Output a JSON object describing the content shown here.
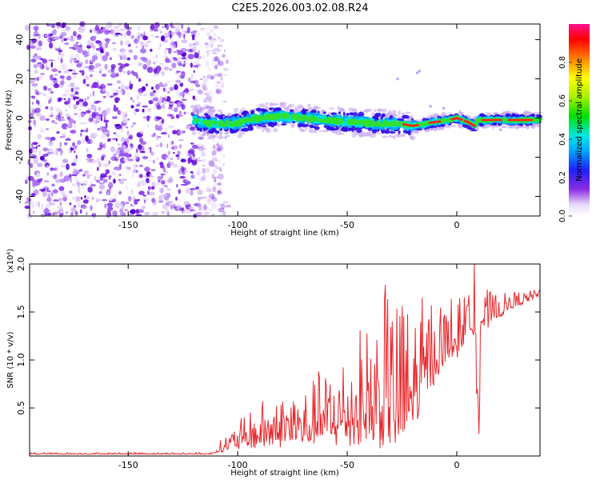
{
  "title": "C2E5.2026.003.02.08.R24",
  "chart_data": [
    {
      "type": "heatmap",
      "xlabel": "Height of straight line (km)",
      "ylabel": "Frequency (Hz)",
      "xlim": [
        -195,
        38
      ],
      "ylim": [
        -50,
        48
      ],
      "x_ticks": [
        -150,
        -100,
        -50,
        0
      ],
      "x_tick_labels": [
        "-150",
        "-100",
        "-50",
        "0"
      ],
      "y_ticks": [
        -40,
        -20,
        0,
        20,
        40
      ],
      "y_tick_labels": [
        "-40",
        "-20",
        "0",
        "20",
        "40"
      ],
      "colorbar": {
        "label": "Normalized spectral amplitude",
        "range": [
          0,
          1
        ],
        "ticks": [
          0.0,
          0.2,
          0.4,
          0.6,
          0.8
        ],
        "tick_labels": [
          "0.0",
          "0.2",
          "0.4",
          "0.6",
          "0.8"
        ]
      },
      "noise_region_x": [
        -195,
        -112
      ],
      "ridge": [
        {
          "x": -118,
          "y": -2
        },
        {
          "x": -110,
          "y": -3
        },
        {
          "x": -100,
          "y": -2.5
        },
        {
          "x": -90,
          "y": 0
        },
        {
          "x": -80,
          "y": 1
        },
        {
          "x": -70,
          "y": 0
        },
        {
          "x": -60,
          "y": -1
        },
        {
          "x": -50,
          "y": -2
        },
        {
          "x": -40,
          "y": -2.5
        },
        {
          "x": -30,
          "y": -3
        },
        {
          "x": -25,
          "y": -3
        },
        {
          "x": -20,
          "y": -4
        },
        {
          "x": -15,
          "y": -3
        },
        {
          "x": -10,
          "y": -2
        },
        {
          "x": -5,
          "y": -1.5
        },
        {
          "x": 0,
          "y": 0
        },
        {
          "x": 5,
          "y": -2
        },
        {
          "x": 8,
          "y": -4
        },
        {
          "x": 10,
          "y": -1
        },
        {
          "x": 20,
          "y": -1
        },
        {
          "x": 30,
          "y": -1
        },
        {
          "x": 38,
          "y": -1
        }
      ]
    },
    {
      "type": "line",
      "xlabel": "Height of straight line (km)",
      "ylabel": "SNR (10 * v/v)",
      "y_scale_label": "(x10⁴)",
      "xlim": [
        -195,
        38
      ],
      "ylim": [
        0,
        2.0
      ],
      "x_ticks": [
        -150,
        -100,
        -50,
        0
      ],
      "x_tick_labels": [
        "-150",
        "-100",
        "-50",
        "0"
      ],
      "y_ticks": [
        0.5,
        1.0,
        1.5,
        2.0
      ],
      "y_tick_labels": [
        "0.5",
        "1.0",
        "1.5",
        "2.0"
      ],
      "color": "#e8262b",
      "envelope": [
        {
          "x": -195,
          "base": 0.02,
          "amp": 0.01
        },
        {
          "x": -112,
          "base": 0.02,
          "amp": 0.01
        },
        {
          "x": -105,
          "base": 0.08,
          "amp": 0.1
        },
        {
          "x": -90,
          "base": 0.15,
          "amp": 0.25
        },
        {
          "x": -70,
          "base": 0.2,
          "amp": 0.35
        },
        {
          "x": -50,
          "base": 0.25,
          "amp": 0.5
        },
        {
          "x": -30,
          "base": 0.3,
          "amp": 0.9
        },
        {
          "x": -20,
          "base": 0.4,
          "amp": 0.7
        },
        {
          "x": -10,
          "base": 0.9,
          "amp": 0.45
        },
        {
          "x": 0,
          "base": 1.1,
          "amp": 0.35
        },
        {
          "x": 5,
          "base": 1.3,
          "amp": 0.25
        },
        {
          "x": 15,
          "base": 1.4,
          "amp": 0.2
        },
        {
          "x": 25,
          "base": 1.55,
          "amp": 0.1
        },
        {
          "x": 38,
          "base": 1.68,
          "amp": 0.03
        }
      ],
      "notable_points": [
        {
          "x": -25,
          "y": 1.56
        },
        {
          "x": 8,
          "y": 2.0
        },
        {
          "x": 10,
          "y": 0.23
        }
      ]
    }
  ]
}
